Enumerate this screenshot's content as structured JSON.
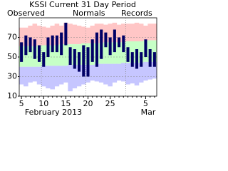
{
  "chart_data": {
    "type": "range_bar",
    "title": "KSSI Current 31 Day Period",
    "categories": [
      "5",
      null,
      null,
      null,
      null,
      "10",
      null,
      null,
      null,
      null,
      "15",
      null,
      null,
      null,
      null,
      "20",
      null,
      null,
      null,
      null,
      "25",
      null,
      null,
      null,
      null,
      null,
      null,
      null,
      "5",
      null,
      null
    ],
    "month_labels": [
      "February 2013",
      "Mar"
    ],
    "series": [
      {
        "name": "Observed",
        "color": "#000066",
        "high": [
          65,
          72,
          70,
          68,
          62,
          55,
          70,
          72,
          72,
          75,
          85,
          60,
          58,
          55,
          62,
          60,
          68,
          75,
          78,
          75,
          70,
          78,
          70,
          72,
          60,
          55,
          58,
          55,
          68,
          58,
          55
        ],
        "low": [
          45,
          52,
          55,
          48,
          45,
          40,
          50,
          55,
          55,
          52,
          62,
          42,
          38,
          35,
          30,
          30,
          45,
          40,
          48,
          60,
          52,
          55,
          60,
          55,
          45,
          40,
          38,
          40,
          50,
          40,
          40
        ]
      },
      {
        "name": "Normals",
        "color": "#00aa00",
        "high": [
          61,
          61,
          61,
          61,
          62,
          62,
          62,
          62,
          62,
          63,
          63,
          63,
          63,
          63,
          64,
          64,
          64,
          64,
          64,
          65,
          65,
          65,
          65,
          65,
          66,
          66,
          66,
          66,
          67,
          67,
          67
        ],
        "low": [
          40,
          40,
          40,
          40,
          40,
          41,
          41,
          41,
          41,
          41,
          41,
          42,
          42,
          42,
          42,
          42,
          42,
          43,
          43,
          43,
          43,
          43,
          43,
          44,
          44,
          44,
          44,
          44,
          45,
          45,
          45
        ]
      },
      {
        "name": "Records",
        "color": "#cc99cc",
        "high": [
          80,
          80,
          82,
          84,
          82,
          81,
          80,
          82,
          84,
          82,
          85,
          84,
          83,
          82,
          81,
          80,
          82,
          84,
          84,
          83,
          84,
          85,
          83,
          84,
          84,
          84,
          85,
          84,
          82,
          84,
          84
        ],
        "low": [
          22,
          20,
          24,
          25,
          22,
          20,
          18,
          17,
          20,
          22,
          24,
          15,
          18,
          20,
          22,
          24,
          26,
          25,
          24,
          22,
          20,
          24,
          26,
          25,
          22,
          23,
          21,
          24,
          26,
          27,
          28
        ],
        "high_color": "#ffc6c6",
        "low_color": "#c6c6ff"
      }
    ],
    "normal_band_color": "#c6ffc6",
    "ylim": [
      10,
      90
    ],
    "yticks": [
      10,
      30,
      50,
      70
    ],
    "grid": true
  }
}
